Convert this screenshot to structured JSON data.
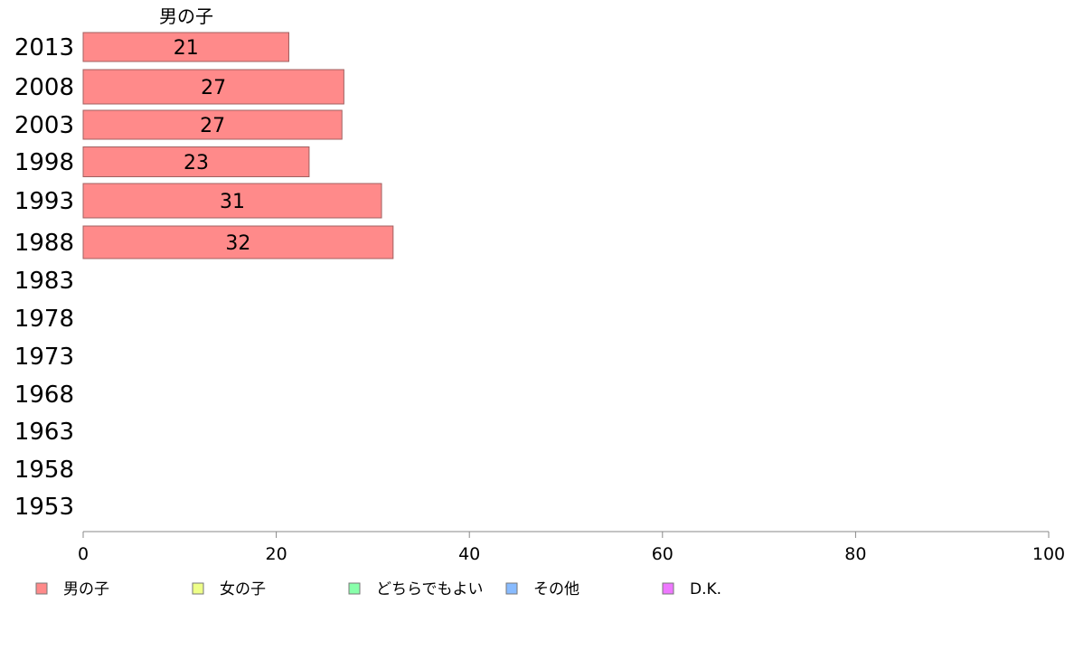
{
  "chart_data": {
    "type": "bar",
    "orientation": "horizontal",
    "stacked": true,
    "categories": [
      "2013",
      "2008",
      "2003",
      "1998",
      "1993",
      "1988",
      "1983",
      "1978",
      "1973",
      "1968",
      "1963",
      "1958",
      "1953"
    ],
    "series": [
      {
        "name": "男の子",
        "color": "#ff8a8a",
        "values": [
          21.3,
          27,
          26.8,
          23.4,
          30.9,
          32.1,
          null,
          null,
          null,
          null,
          null,
          null,
          null
        ]
      },
      {
        "name": "女の子",
        "color": "#eeff88",
        "values": [
          null,
          null,
          null,
          null,
          null,
          null,
          null,
          null,
          null,
          null,
          null,
          null,
          null
        ]
      },
      {
        "name": "どちらでもよい",
        "color": "#88ffaa",
        "values": [
          null,
          null,
          null,
          null,
          null,
          null,
          null,
          null,
          null,
          null,
          null,
          null,
          null
        ]
      },
      {
        "name": "その他",
        "color": "#88bbff",
        "values": [
          null,
          null,
          null,
          null,
          null,
          null,
          null,
          null,
          null,
          null,
          null,
          null,
          null
        ]
      },
      {
        "name": "D.K.",
        "color": "#ee77ff",
        "values": [
          null,
          null,
          null,
          null,
          null,
          null,
          null,
          null,
          null,
          null,
          null,
          null,
          null
        ]
      }
    ],
    "data_labels": [
      "21",
      "27",
      "27",
      "23",
      "31",
      "32"
    ],
    "top_series_label": "男の子",
    "xlim": [
      0,
      100
    ],
    "xticks": [
      "0",
      "20",
      "40",
      "60",
      "80",
      "100"
    ],
    "grid": false,
    "legend_position": "bottom"
  }
}
